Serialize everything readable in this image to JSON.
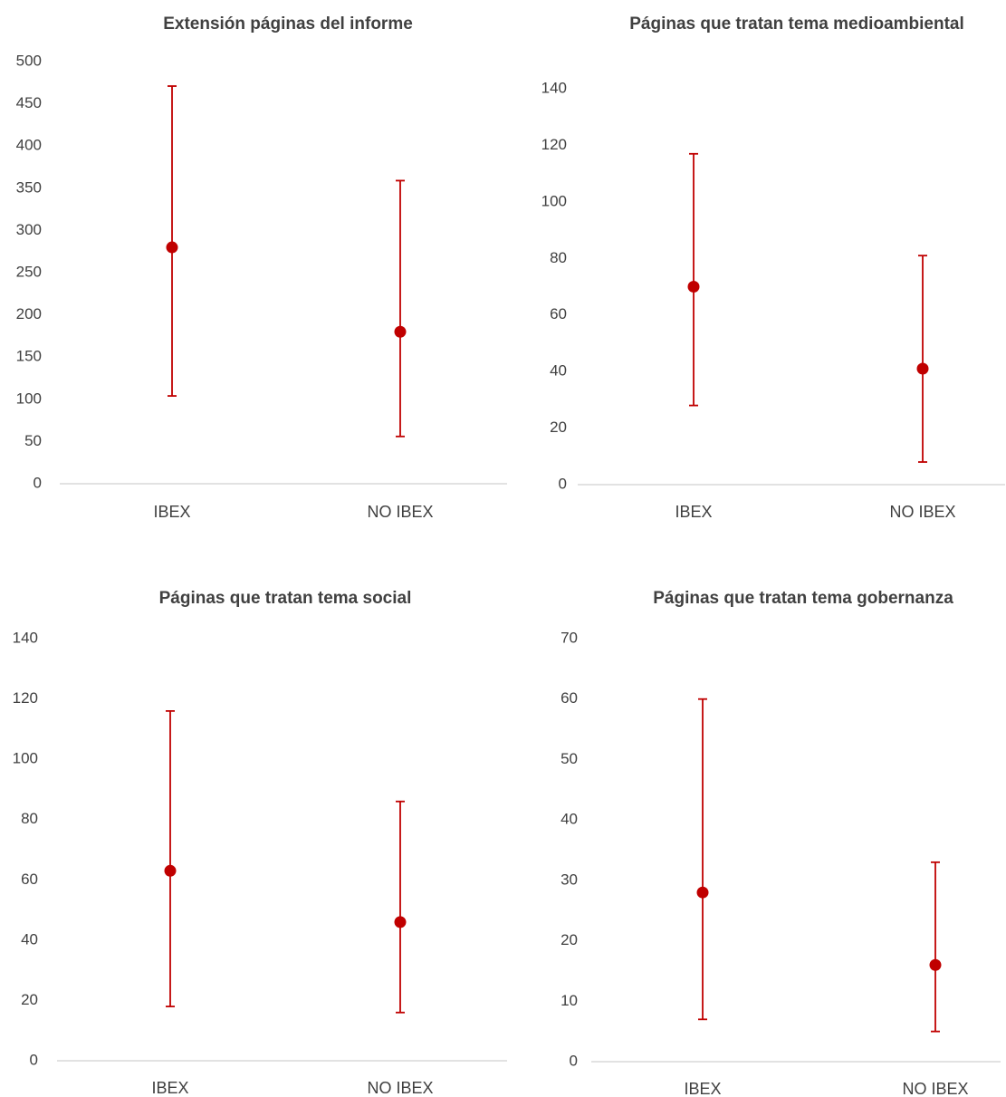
{
  "colors": {
    "marker": "#c00000",
    "axis": "#d9d9d9",
    "text": "#404040"
  },
  "chart_data": [
    {
      "type": "scatter",
      "title": "Extensión páginas del informe",
      "categories": [
        "IBEX",
        "NO IBEX"
      ],
      "yticks": [
        "0",
        "50",
        "100",
        "150",
        "200",
        "250",
        "300",
        "350",
        "400",
        "450",
        "500"
      ],
      "ylim": [
        0,
        500
      ],
      "points": [
        {
          "category": "IBEX",
          "value": 280,
          "low": 104,
          "high": 471
        },
        {
          "category": "NO IBEX",
          "value": 180,
          "low": 56,
          "high": 359
        }
      ],
      "grid": false
    },
    {
      "type": "scatter",
      "title": "Páginas que tratan tema medioambiental",
      "categories": [
        "IBEX",
        "NO IBEX"
      ],
      "yticks": [
        "0",
        "20",
        "40",
        "60",
        "80",
        "100",
        "120",
        "140"
      ],
      "ylim": [
        0,
        140
      ],
      "points": [
        {
          "category": "IBEX",
          "value": 70,
          "low": 28,
          "high": 117
        },
        {
          "category": "NO IBEX",
          "value": 41,
          "low": 8,
          "high": 81
        }
      ],
      "grid": false
    },
    {
      "type": "scatter",
      "title": "Páginas que tratan tema social",
      "categories": [
        "IBEX",
        "NO IBEX"
      ],
      "yticks": [
        "0",
        "20",
        "40",
        "60",
        "80",
        "100",
        "120",
        "140"
      ],
      "ylim": [
        0,
        140
      ],
      "points": [
        {
          "category": "IBEX",
          "value": 63,
          "low": 18,
          "high": 116
        },
        {
          "category": "NO IBEX",
          "value": 46,
          "low": 16,
          "high": 86
        }
      ],
      "grid": false
    },
    {
      "type": "scatter",
      "title": "Páginas que tratan tema gobernanza",
      "categories": [
        "IBEX",
        "NO IBEX"
      ],
      "yticks": [
        "0",
        "10",
        "20",
        "30",
        "40",
        "50",
        "60",
        "70"
      ],
      "ylim": [
        0,
        70
      ],
      "points": [
        {
          "category": "IBEX",
          "value": 28,
          "low": 7,
          "high": 60
        },
        {
          "category": "NO IBEX",
          "value": 16,
          "low": 5,
          "high": 33
        }
      ],
      "grid": false
    }
  ]
}
